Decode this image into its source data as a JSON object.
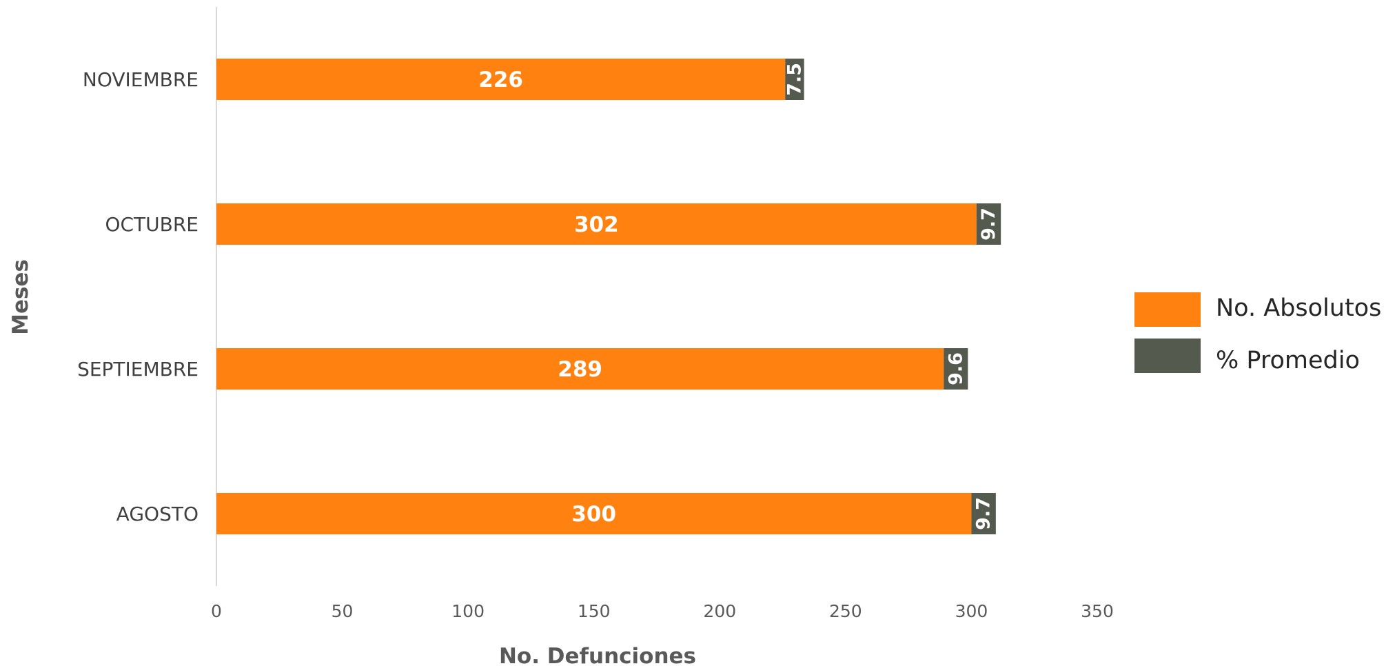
{
  "chart_data": {
    "type": "bar",
    "orientation": "horizontal",
    "stacked": true,
    "categories": [
      "AGOSTO",
      "SEPTIEMBRE",
      "OCTUBRE",
      "NOVIEMBRE"
    ],
    "series": [
      {
        "name": "No. Absolutos",
        "values": [
          300,
          289,
          302,
          226
        ],
        "color": "#FF8210"
      },
      {
        "name": "% Promedio",
        "values": [
          9.7,
          9.6,
          9.7,
          7.5
        ],
        "color": "#555A4E"
      }
    ],
    "value_labels": {
      "absolutos": [
        "300",
        "289",
        "302",
        "226"
      ],
      "promedio": [
        "9.7",
        "9.6",
        "9.7",
        "7.5"
      ]
    },
    "xlabel": "No. Defunciones",
    "ylabel": "Meses",
    "xlim": [
      0,
      350
    ],
    "xticks": [
      0,
      50,
      100,
      150,
      200,
      250,
      300,
      350
    ],
    "xtick_labels": [
      "0",
      "50",
      "100",
      "150",
      "200",
      "250",
      "300",
      "350"
    ],
    "grid": false,
    "legend_position": "right"
  }
}
